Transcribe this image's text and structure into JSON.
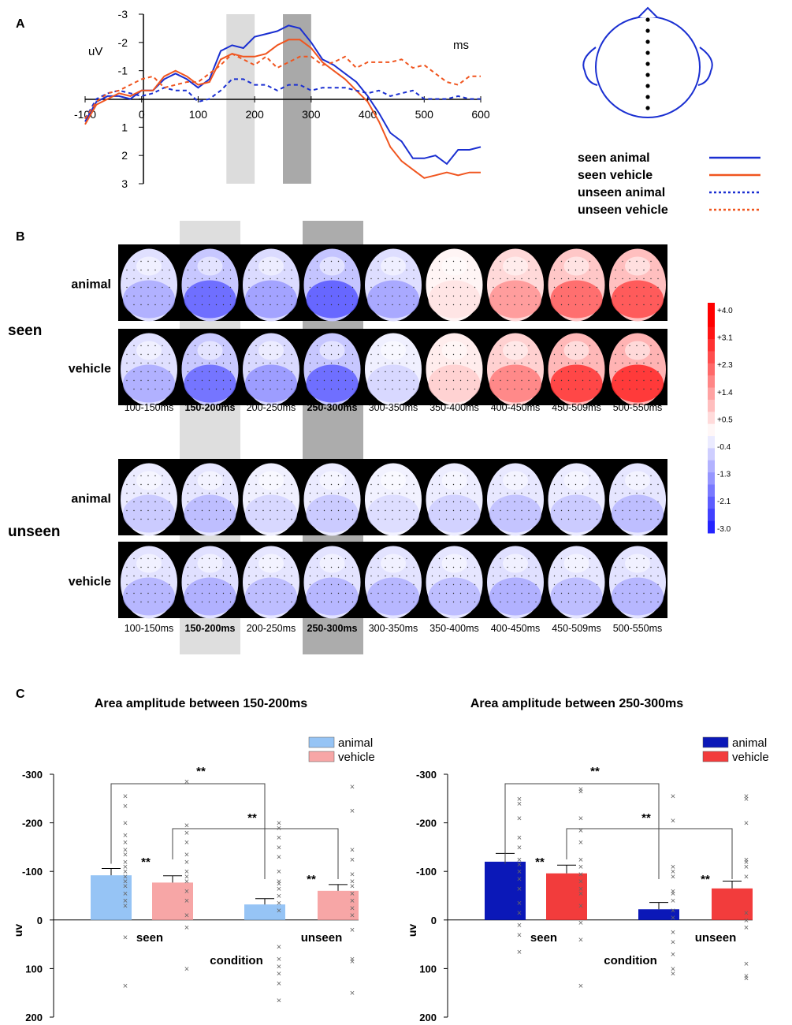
{
  "panel_labels": {
    "a": "A",
    "b": "B",
    "c": "C"
  },
  "panel_a": {
    "ylabel": "uV",
    "xlabel": "ms",
    "x_ticks": [
      -100,
      0,
      100,
      200,
      300,
      400,
      500,
      600
    ],
    "y_ticks": [
      -3,
      -2,
      -1,
      0,
      1,
      2,
      3
    ],
    "x_tick_labels": [
      "-100",
      "0",
      "100",
      "200",
      "300",
      "400",
      "500",
      "600"
    ],
    "y_tick_labels": [
      "-3",
      "-2",
      "-1",
      "0",
      "1",
      "2",
      "3"
    ],
    "windows": [
      {
        "start": 150,
        "end": 200,
        "color": "#dcdcdc"
      },
      {
        "start": 250,
        "end": 300,
        "color": "#a9a9a9"
      }
    ],
    "legend": [
      "seen animal",
      "seen vehicle",
      "unseen animal",
      "unseen vehicle"
    ]
  },
  "chart_data": [
    {
      "type": "line",
      "title": "",
      "xlabel": "ms",
      "ylabel": "uV",
      "xlim": [
        -100,
        600
      ],
      "ylim": [
        3,
        -3
      ],
      "series": [
        {
          "name": "seen animal",
          "color": "#1a2fd1",
          "dashed": false,
          "x": [
            -100,
            -80,
            -60,
            -40,
            -20,
            0,
            20,
            40,
            60,
            80,
            100,
            120,
            140,
            160,
            180,
            200,
            220,
            240,
            260,
            280,
            300,
            320,
            340,
            360,
            380,
            400,
            420,
            440,
            460,
            480,
            500,
            520,
            540,
            560,
            580,
            600
          ],
          "y": [
            0.8,
            0.1,
            -0.1,
            -0.1,
            0.0,
            -0.3,
            -0.3,
            -0.7,
            -0.9,
            -0.7,
            -0.4,
            -0.7,
            -1.7,
            -1.9,
            -1.8,
            -2.2,
            -2.3,
            -2.4,
            -2.6,
            -2.5,
            -2.0,
            -1.4,
            -1.2,
            -0.9,
            -0.6,
            -0.1,
            0.5,
            1.2,
            1.5,
            2.1,
            2.1,
            2.0,
            2.3,
            1.8,
            1.8,
            1.7
          ]
        },
        {
          "name": "seen vehicle",
          "color": "#f0551f",
          "dashed": false,
          "x": [
            -100,
            -80,
            -60,
            -40,
            -20,
            0,
            20,
            40,
            60,
            80,
            100,
            120,
            140,
            160,
            180,
            200,
            220,
            240,
            260,
            280,
            300,
            320,
            340,
            360,
            380,
            400,
            420,
            440,
            460,
            480,
            500,
            520,
            540,
            560,
            580,
            600
          ],
          "y": [
            0.9,
            0.2,
            0.0,
            -0.2,
            -0.1,
            -0.3,
            -0.3,
            -0.8,
            -1.0,
            -0.8,
            -0.5,
            -0.6,
            -1.4,
            -1.6,
            -1.5,
            -1.5,
            -1.6,
            -1.9,
            -2.1,
            -2.1,
            -1.8,
            -1.3,
            -1.0,
            -0.7,
            -0.3,
            0.1,
            0.8,
            1.7,
            2.2,
            2.5,
            2.8,
            2.7,
            2.6,
            2.7,
            2.6,
            2.6
          ]
        },
        {
          "name": "unseen animal",
          "color": "#1a2fd1",
          "dashed": true,
          "x": [
            -100,
            -80,
            -60,
            -40,
            -20,
            0,
            20,
            40,
            60,
            80,
            100,
            120,
            140,
            160,
            180,
            200,
            220,
            240,
            260,
            280,
            300,
            320,
            340,
            360,
            380,
            400,
            420,
            440,
            460,
            480,
            500,
            520,
            540,
            560,
            580,
            600
          ],
          "y": [
            0.7,
            0.0,
            -0.2,
            -0.3,
            -0.2,
            -0.1,
            -0.2,
            -0.4,
            -0.3,
            -0.3,
            0.1,
            0.0,
            -0.3,
            -0.7,
            -0.7,
            -0.5,
            -0.5,
            -0.3,
            -0.5,
            -0.5,
            -0.3,
            -0.4,
            -0.4,
            -0.4,
            -0.3,
            -0.2,
            -0.3,
            -0.1,
            -0.2,
            -0.3,
            0.0,
            0.0,
            0.0,
            -0.1,
            0.0,
            0.0
          ]
        },
        {
          "name": "unseen vehicle",
          "color": "#f0551f",
          "dashed": true,
          "x": [
            -100,
            -80,
            -60,
            -40,
            -20,
            0,
            20,
            40,
            60,
            80,
            100,
            120,
            140,
            160,
            180,
            200,
            220,
            240,
            260,
            280,
            300,
            320,
            340,
            360,
            380,
            400,
            420,
            440,
            460,
            480,
            500,
            520,
            540,
            560,
            580,
            600
          ],
          "y": [
            0.7,
            0.1,
            -0.2,
            -0.3,
            -0.5,
            -0.7,
            -0.8,
            -0.4,
            -0.5,
            -0.6,
            -0.6,
            -0.9,
            -1.2,
            -1.6,
            -1.4,
            -1.2,
            -1.5,
            -1.1,
            -1.3,
            -1.5,
            -1.5,
            -1.2,
            -1.3,
            -1.5,
            -1.1,
            -1.3,
            -1.3,
            -1.3,
            -1.4,
            -1.1,
            -1.2,
            -0.9,
            -0.6,
            -0.5,
            -0.8,
            -0.8
          ]
        }
      ]
    },
    {
      "type": "bar",
      "title": "Area amplitude between 150-200ms",
      "xlabel": "condition",
      "ylabel": "uv",
      "categories": [
        "seen",
        "unseen"
      ],
      "ylim": [
        200,
        -300
      ],
      "y_ticks": [
        -300,
        -200,
        -100,
        0,
        100,
        200
      ],
      "series": [
        {
          "name": "animal",
          "color": "#96c4f5",
          "values": [
            -92,
            -32
          ],
          "errors": [
            14,
            12
          ],
          "points": [
            [
              -255,
              -235,
              -200,
              -175,
              -160,
              -145,
              -135,
              -120,
              -110,
              -100,
              -90,
              -80,
              -70,
              -55,
              -40,
              -30,
              35,
              135
            ],
            [
              -200,
              -190,
              -170,
              -150,
              -130,
              -100,
              -80,
              -75,
              -65,
              -50,
              -35,
              -20,
              55,
              80,
              95,
              110,
              130,
              165
            ]
          ]
        },
        {
          "name": "vehicle",
          "color": "#f7a6a6",
          "values": [
            -77,
            -60
          ],
          "errors": [
            14,
            13
          ],
          "points": [
            [
              -285,
              -195,
              -180,
              -160,
              -135,
              -120,
              -100,
              -90,
              -80,
              -60,
              -40,
              -10,
              15,
              100
            ],
            [
              -275,
              -225,
              -145,
              -125,
              -95,
              -80,
              -70,
              -55,
              -40,
              -25,
              -10,
              20,
              80,
              85,
              150
            ]
          ]
        }
      ],
      "brackets": [
        {
          "from": "seen animal",
          "to": "unseen animal",
          "label": "**"
        },
        {
          "from": "seen vehicle",
          "to": "unseen vehicle",
          "label": "**"
        }
      ],
      "within_stars": [
        "**",
        "**"
      ]
    },
    {
      "type": "bar",
      "title": "Area amplitude between 250-300ms",
      "xlabel": "condition",
      "ylabel": "uv",
      "categories": [
        "seen",
        "unseen"
      ],
      "ylim": [
        200,
        -300
      ],
      "y_ticks": [
        -300,
        -200,
        -100,
        0,
        100,
        200
      ],
      "series": [
        {
          "name": "animal",
          "color": "#0b18b8",
          "values": [
            -120,
            -22
          ],
          "errors": [
            17,
            14
          ],
          "points": [
            [
              -250,
              -240,
              -210,
              -170,
              -150,
              -125,
              -115,
              -100,
              -85,
              -65,
              -35,
              -15,
              10,
              30,
              65
            ],
            [
              -255,
              -205,
              -110,
              -100,
              -90,
              -60,
              -55,
              -40,
              -20,
              -5,
              25,
              45,
              70,
              100,
              110
            ]
          ]
        },
        {
          "name": "vehicle",
          "color": "#f23c3c",
          "values": [
            -96,
            -65
          ],
          "errors": [
            17,
            15
          ],
          "points": [
            [
              -270,
              -265,
              -210,
              -185,
              -160,
              -125,
              -110,
              -95,
              -80,
              -65,
              -55,
              -30,
              5,
              40,
              135
            ],
            [
              -255,
              -250,
              -200,
              -125,
              -120,
              -110,
              -90,
              -15,
              0,
              15,
              90,
              115,
              120
            ]
          ]
        }
      ],
      "brackets": [
        {
          "from": "seen animal",
          "to": "unseen animal",
          "label": "**"
        },
        {
          "from": "seen vehicle",
          "to": "unseen vehicle",
          "label": "**"
        }
      ],
      "within_stars": [
        "**",
        "**"
      ]
    }
  ],
  "panel_b": {
    "group_labels": [
      "seen",
      "unseen"
    ],
    "row_labels": [
      "animal",
      "vehicle",
      "animal",
      "vehicle"
    ],
    "time_windows": [
      "100-150ms",
      "150-200ms",
      "200-250ms",
      "250-300ms",
      "300-350ms",
      "350-400ms",
      "400-450ms",
      "450-509ms",
      "500-550ms"
    ],
    "highlighted_windows": [
      "150-200ms",
      "250-300ms"
    ],
    "colorbar": {
      "ticks": [
        "+4.0",
        "+3.1",
        "+2.3",
        "+1.4",
        "+0.5",
        "-0.4",
        "-1.3",
        "-2.1",
        "-3.0"
      ],
      "values": [
        4.0,
        3.1,
        2.3,
        1.4,
        0.5,
        -0.4,
        -1.3,
        -2.1,
        -3.0
      ]
    },
    "maps": [
      [
        -1.2,
        -2.2,
        -1.4,
        -2.3,
        -1.3,
        0.4,
        1.5,
        2.2,
        2.5
      ],
      [
        -1.2,
        -2.1,
        -1.5,
        -2.2,
        -0.6,
        0.7,
        1.8,
        2.8,
        3.0
      ],
      [
        -0.8,
        -1.0,
        -0.6,
        -0.8,
        -0.5,
        -0.7,
        -0.9,
        -0.8,
        -1.0
      ],
      [
        -1.1,
        -1.2,
        -1.0,
        -1.1,
        -1.1,
        -1.0,
        -1.2,
        -1.0,
        -1.1
      ]
    ]
  }
}
